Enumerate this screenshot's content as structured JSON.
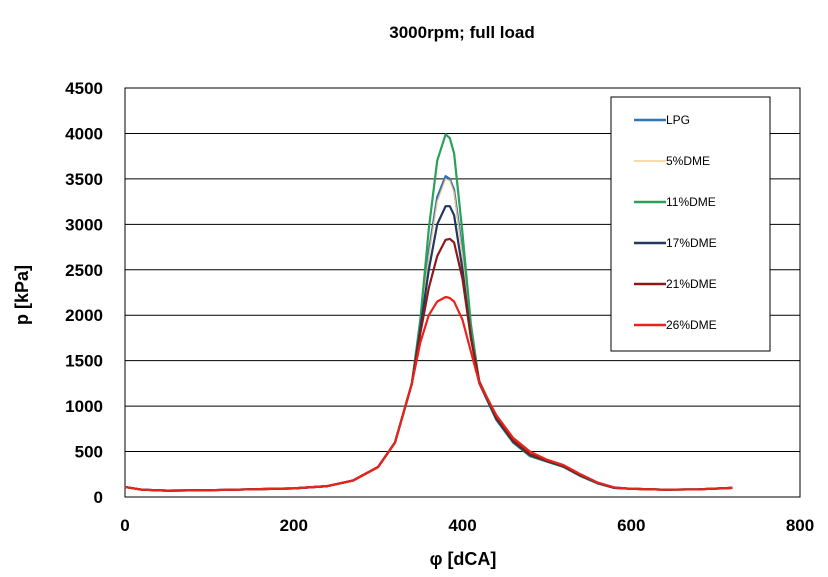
{
  "chart_data": {
    "type": "line",
    "title": "3000rpm; full load",
    "xlabel": "φ [dCA]",
    "ylabel": "p [kPa]",
    "xlim": [
      0,
      800
    ],
    "ylim": [
      0,
      4500
    ],
    "xticks": [
      0,
      200,
      400,
      600,
      800
    ],
    "yticks": [
      0,
      500,
      1000,
      1500,
      2000,
      2500,
      3000,
      3500,
      4000,
      4500
    ],
    "grid": "horizontal",
    "legend_position": "top-right",
    "series": [
      {
        "name": "LPG",
        "color": "#2E75B6",
        "x": [
          0,
          20,
          50,
          100,
          150,
          200,
          240,
          270,
          300,
          320,
          340,
          350,
          360,
          370,
          380,
          385,
          390,
          400,
          410,
          420,
          440,
          460,
          480,
          500,
          520,
          540,
          560,
          580,
          600,
          640,
          680,
          720
        ],
        "y": [
          110,
          80,
          70,
          75,
          85,
          95,
          120,
          180,
          330,
          600,
          1250,
          1900,
          2700,
          3300,
          3530,
          3500,
          3380,
          2700,
          1800,
          1250,
          850,
          600,
          450,
          390,
          330,
          230,
          150,
          100,
          90,
          80,
          85,
          100
        ]
      },
      {
        "name": "5%DME",
        "color": "#F2C57C",
        "x": [
          0,
          20,
          50,
          100,
          150,
          200,
          240,
          270,
          300,
          320,
          340,
          350,
          360,
          370,
          380,
          385,
          390,
          400,
          410,
          420,
          440,
          460,
          480,
          500,
          520,
          540,
          560,
          580,
          600,
          640,
          680,
          720
        ],
        "y": [
          110,
          80,
          70,
          75,
          85,
          95,
          120,
          180,
          330,
          600,
          1250,
          1900,
          2650,
          3250,
          3500,
          3480,
          3350,
          2650,
          1780,
          1250,
          850,
          600,
          450,
          390,
          330,
          230,
          150,
          100,
          90,
          80,
          85,
          100
        ]
      },
      {
        "name": "11%DME",
        "color": "#2AA05A",
        "x": [
          0,
          20,
          50,
          100,
          150,
          200,
          240,
          270,
          300,
          320,
          340,
          350,
          360,
          370,
          380,
          385,
          390,
          400,
          410,
          420,
          440,
          460,
          480,
          500,
          520,
          540,
          560,
          580,
          600,
          640,
          680,
          720
        ],
        "y": [
          110,
          80,
          70,
          75,
          85,
          95,
          120,
          180,
          330,
          600,
          1250,
          1950,
          2950,
          3700,
          3990,
          3950,
          3780,
          2900,
          1900,
          1250,
          850,
          600,
          450,
          390,
          330,
          230,
          150,
          100,
          90,
          80,
          85,
          100
        ]
      },
      {
        "name": "17%DME",
        "color": "#203864",
        "x": [
          0,
          20,
          50,
          100,
          150,
          200,
          240,
          270,
          300,
          320,
          340,
          350,
          360,
          370,
          380,
          385,
          390,
          400,
          410,
          420,
          440,
          460,
          480,
          500,
          520,
          540,
          560,
          580,
          600,
          640,
          680,
          720
        ],
        "y": [
          110,
          80,
          70,
          75,
          85,
          95,
          120,
          180,
          330,
          600,
          1250,
          1850,
          2500,
          3000,
          3200,
          3200,
          3100,
          2500,
          1750,
          1250,
          860,
          610,
          460,
          395,
          335,
          235,
          155,
          100,
          90,
          80,
          85,
          100
        ]
      },
      {
        "name": "21%DME",
        "color": "#8B1A1A",
        "x": [
          0,
          20,
          50,
          100,
          150,
          200,
          240,
          270,
          300,
          320,
          340,
          350,
          360,
          370,
          380,
          385,
          390,
          400,
          410,
          420,
          440,
          460,
          480,
          500,
          520,
          540,
          560,
          580,
          600,
          640,
          680,
          720
        ],
        "y": [
          110,
          80,
          70,
          75,
          85,
          95,
          120,
          180,
          330,
          600,
          1250,
          1800,
          2300,
          2650,
          2830,
          2840,
          2800,
          2400,
          1750,
          1270,
          880,
          620,
          470,
          400,
          340,
          240,
          160,
          105,
          90,
          80,
          85,
          100
        ]
      },
      {
        "name": "26%DME",
        "color": "#E8231C",
        "x": [
          0,
          20,
          50,
          100,
          150,
          200,
          240,
          270,
          300,
          320,
          340,
          350,
          360,
          370,
          380,
          385,
          390,
          400,
          410,
          420,
          440,
          460,
          480,
          500,
          520,
          540,
          560,
          580,
          600,
          640,
          680,
          720
        ],
        "y": [
          110,
          80,
          70,
          75,
          85,
          95,
          120,
          180,
          330,
          600,
          1250,
          1700,
          2000,
          2150,
          2200,
          2190,
          2150,
          1950,
          1600,
          1250,
          900,
          650,
          500,
          410,
          350,
          250,
          160,
          105,
          90,
          80,
          85,
          100
        ]
      }
    ]
  }
}
